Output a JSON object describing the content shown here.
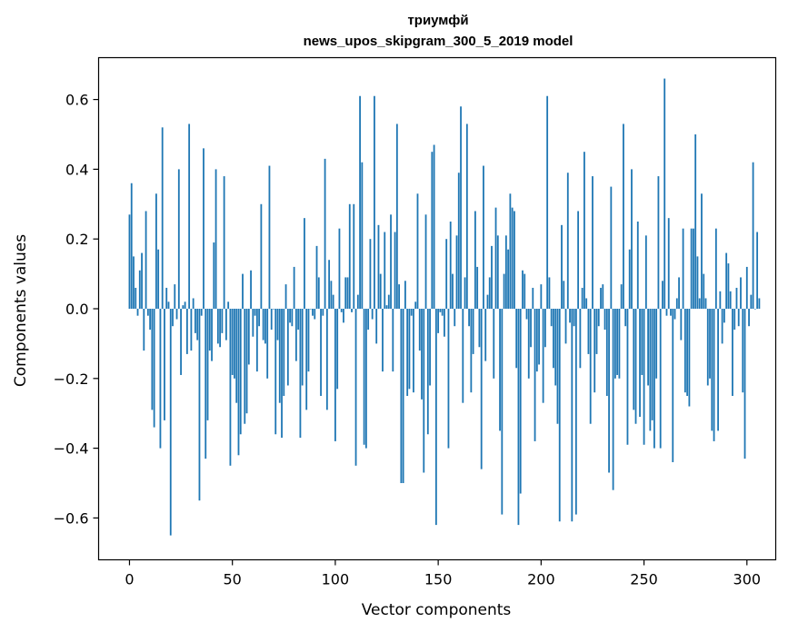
{
  "chart_data": {
    "type": "bar",
    "title": "триумфй",
    "subtitle": "news_upos_skipgram_300_5_2019 model",
    "xlabel": "Vector components",
    "ylabel": "Components values",
    "xlim": [
      -15,
      314
    ],
    "ylim": [
      -0.72,
      0.72
    ],
    "xticks": [
      0,
      50,
      100,
      150,
      200,
      250,
      300
    ],
    "xtick_labels": [
      "0",
      "50",
      "100",
      "150",
      "200",
      "250",
      "300"
    ],
    "yticks": [
      -0.6,
      -0.4,
      -0.2,
      0.0,
      0.2,
      0.4,
      0.6
    ],
    "ytick_labels": [
      "−0.6",
      "−0.4",
      "−0.2",
      "0.0",
      "0.2",
      "0.4",
      "0.6"
    ],
    "grid": false,
    "legend": "none",
    "bar_color": "#1f77b4",
    "values": [
      0.27,
      0.36,
      0.15,
      0.06,
      -0.02,
      0.11,
      0.16,
      -0.12,
      0.28,
      -0.02,
      -0.06,
      -0.29,
      -0.34,
      0.33,
      0.17,
      -0.4,
      0.52,
      -0.32,
      0.06,
      0.02,
      -0.65,
      -0.05,
      0.07,
      -0.03,
      0.4,
      -0.19,
      0.01,
      0.02,
      -0.13,
      0.53,
      -0.12,
      0.03,
      -0.07,
      -0.09,
      -0.55,
      -0.02,
      0.46,
      -0.43,
      -0.32,
      -0.12,
      -0.15,
      0.19,
      0.4,
      -0.1,
      -0.11,
      -0.07,
      0.38,
      -0.09,
      0.02,
      -0.45,
      -0.19,
      -0.2,
      -0.27,
      -0.42,
      -0.36,
      0.1,
      -0.33,
      -0.3,
      -0.16,
      0.11,
      -0.08,
      -0.02,
      -0.18,
      -0.05,
      0.3,
      -0.09,
      -0.1,
      -0.2,
      0.41,
      -0.06,
      0.0,
      -0.36,
      -0.09,
      -0.27,
      -0.37,
      -0.25,
      0.07,
      -0.22,
      -0.04,
      -0.05,
      0.12,
      -0.15,
      -0.06,
      -0.37,
      -0.22,
      0.26,
      -0.29,
      -0.18,
      0.0,
      -0.02,
      -0.03,
      0.18,
      0.09,
      -0.25,
      -0.02,
      0.43,
      -0.29,
      0.14,
      0.08,
      0.04,
      -0.38,
      -0.23,
      0.23,
      -0.01,
      -0.04,
      0.09,
      0.09,
      0.3,
      -0.01,
      0.3,
      -0.45,
      0.04,
      0.61,
      0.42,
      -0.39,
      -0.4,
      -0.06,
      0.2,
      -0.03,
      0.61,
      -0.1,
      0.24,
      0.1,
      -0.18,
      0.22,
      0.01,
      0.04,
      0.27,
      -0.18,
      0.22,
      0.53,
      0.07,
      -0.5,
      -0.5,
      0.08,
      -0.25,
      -0.23,
      -0.02,
      -0.24,
      0.02,
      0.33,
      -0.12,
      -0.26,
      -0.47,
      0.27,
      -0.36,
      -0.22,
      0.45,
      0.47,
      -0.62,
      -0.07,
      -0.01,
      -0.02,
      -0.08,
      0.2,
      -0.4,
      0.25,
      0.1,
      -0.05,
      0.21,
      0.39,
      0.58,
      -0.27,
      0.09,
      0.53,
      -0.05,
      -0.24,
      -0.13,
      0.28,
      0.12,
      -0.11,
      -0.46,
      0.41,
      -0.15,
      0.04,
      0.09,
      0.18,
      -0.2,
      0.29,
      0.21,
      -0.35,
      -0.59,
      0.1,
      0.21,
      0.17,
      0.33,
      0.29,
      0.28,
      -0.17,
      -0.62,
      -0.53,
      0.11,
      0.1,
      -0.03,
      -0.2,
      -0.11,
      0.06,
      -0.38,
      -0.18,
      -0.16,
      0.07,
      -0.27,
      -0.11,
      0.61,
      0.09,
      -0.05,
      -0.17,
      -0.22,
      -0.33,
      -0.61,
      0.24,
      0.08,
      -0.1,
      0.39,
      -0.04,
      -0.61,
      -0.05,
      -0.59,
      0.28,
      -0.17,
      0.06,
      0.45,
      0.03,
      -0.13,
      -0.33,
      0.38,
      -0.24,
      -0.13,
      -0.05,
      0.06,
      0.07,
      -0.06,
      -0.25,
      -0.47,
      0.35,
      -0.52,
      -0.2,
      -0.19,
      -0.2,
      0.07,
      0.53,
      -0.05,
      -0.39,
      0.17,
      0.4,
      -0.29,
      -0.33,
      0.25,
      -0.31,
      -0.19,
      -0.39,
      0.21,
      -0.22,
      -0.35,
      -0.32,
      -0.4,
      -0.2,
      0.38,
      -0.4,
      0.08,
      0.66,
      -0.02,
      0.26,
      -0.02,
      -0.44,
      -0.03,
      0.03,
      0.09,
      -0.09,
      0.23,
      -0.24,
      -0.25,
      -0.28,
      0.23,
      0.23,
      0.5,
      0.15,
      0.03,
      0.33,
      0.1,
      0.03,
      -0.22,
      -0.2,
      -0.35,
      -0.38,
      0.23,
      -0.35,
      0.05,
      -0.1,
      -0.04,
      0.16,
      0.13,
      0.05,
      -0.25,
      -0.06,
      0.06,
      -0.05,
      0.09,
      -0.24,
      -0.43,
      0.12,
      -0.05,
      0.04,
      0.42,
      0.0,
      0.22,
      0.03
    ]
  }
}
